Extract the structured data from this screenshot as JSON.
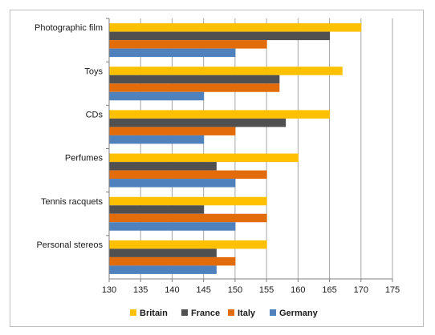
{
  "chart_data": {
    "type": "bar",
    "orientation": "horizontal",
    "categories": [
      "Photographic film",
      "Toys",
      "CDs",
      "Perfumes",
      "Tennis racquets",
      "Personal stereos"
    ],
    "series": [
      {
        "name": "Britain",
        "color": "#FFC000",
        "values": [
          170,
          167,
          165,
          160,
          155,
          155
        ]
      },
      {
        "name": "France",
        "color": "#505050",
        "values": [
          165,
          157,
          158,
          147,
          145,
          147
        ]
      },
      {
        "name": "Italy",
        "color": "#E36C0A",
        "values": [
          155,
          157,
          150,
          155,
          155,
          150
        ]
      },
      {
        "name": "Germany",
        "color": "#4F81BD",
        "values": [
          150,
          145,
          145,
          150,
          150,
          147
        ]
      }
    ],
    "x_ticks": [
      "130",
      "135",
      "140",
      "145",
      "150",
      "155",
      "160",
      "165",
      "170",
      "175"
    ],
    "xlim": [
      130,
      175
    ],
    "grid": "vertical",
    "legend_position": "bottom",
    "title": "",
    "xlabel": "",
    "ylabel": ""
  }
}
